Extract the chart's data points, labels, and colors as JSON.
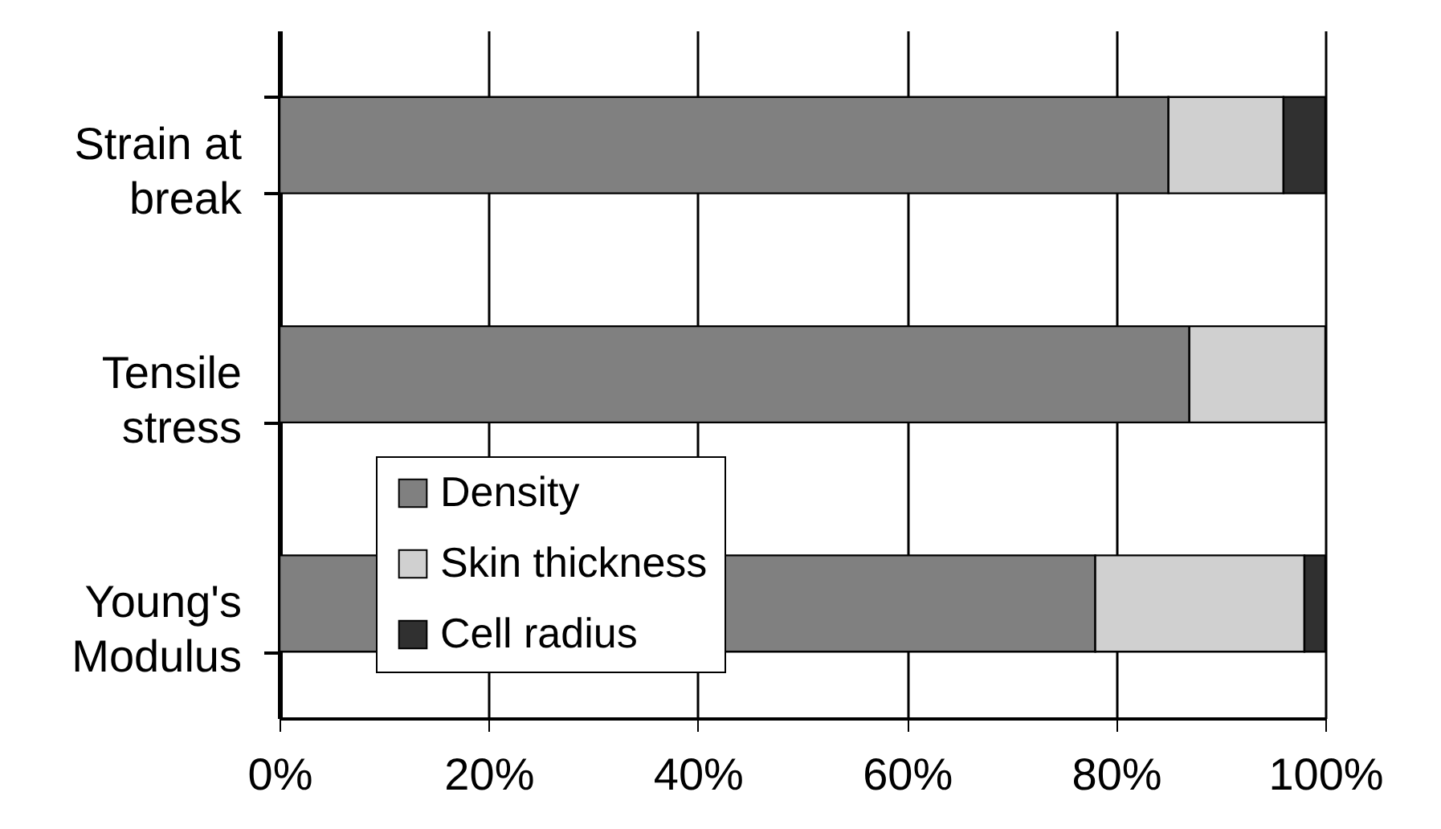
{
  "chart_data": {
    "type": "bar",
    "orientation": "horizontal",
    "stacked": true,
    "categories": [
      "Strain at break",
      "Tensile stress",
      "Young's Modulus"
    ],
    "series": [
      {
        "name": "Density",
        "color": "#808080",
        "values": [
          85,
          87,
          78
        ]
      },
      {
        "name": "Skin thickness",
        "color": "#d0d0d0",
        "values": [
          11,
          13,
          20
        ]
      },
      {
        "name": "Cell radius",
        "color": "#303030",
        "values": [
          4,
          null,
          2
        ]
      }
    ],
    "xlim": [
      0,
      100
    ],
    "xticks": [
      {
        "value": 0,
        "label": "0%"
      },
      {
        "value": 20,
        "label": "20%"
      },
      {
        "value": 40,
        "label": "40%"
      },
      {
        "value": 60,
        "label": "60%"
      },
      {
        "value": 80,
        "label": "80%"
      },
      {
        "value": 100,
        "label": "100%"
      }
    ],
    "grid": "x",
    "legend": "bottom left"
  }
}
